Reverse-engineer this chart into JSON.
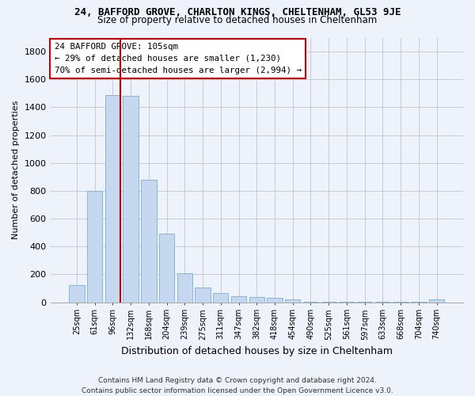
{
  "title1": "24, BAFFORD GROVE, CHARLTON KINGS, CHELTENHAM, GL53 9JE",
  "title2": "Size of property relative to detached houses in Cheltenham",
  "xlabel": "Distribution of detached houses by size in Cheltenham",
  "ylabel": "Number of detached properties",
  "footer": "Contains HM Land Registry data © Crown copyright and database right 2024.\nContains public sector information licensed under the Open Government Licence v3.0.",
  "categories": [
    "25sqm",
    "61sqm",
    "96sqm",
    "132sqm",
    "168sqm",
    "204sqm",
    "239sqm",
    "275sqm",
    "311sqm",
    "347sqm",
    "382sqm",
    "418sqm",
    "454sqm",
    "490sqm",
    "525sqm",
    "561sqm",
    "597sqm",
    "633sqm",
    "668sqm",
    "704sqm",
    "740sqm"
  ],
  "values": [
    120,
    800,
    1490,
    1480,
    880,
    490,
    205,
    105,
    65,
    45,
    35,
    30,
    20,
    5,
    2,
    2,
    1,
    1,
    1,
    1,
    20
  ],
  "bar_color": "#c5d8f0",
  "bar_edge_color": "#7bafd4",
  "vline_x_index": 2.42,
  "vline_color": "#cc0000",
  "annotation_text": "24 BAFFORD GROVE: 105sqm\n← 29% of detached houses are smaller (1,230)\n70% of semi-detached houses are larger (2,994) →",
  "annotation_box_color": "#ffffff",
  "annotation_box_edge": "#cc0000",
  "bg_color": "#eef2fb",
  "plot_bg_color": "#eef2fb",
  "grid_color": "#c8c8d8",
  "ylim": [
    0,
    1900
  ],
  "yticks": [
    0,
    200,
    400,
    600,
    800,
    1000,
    1200,
    1400,
    1600,
    1800
  ]
}
